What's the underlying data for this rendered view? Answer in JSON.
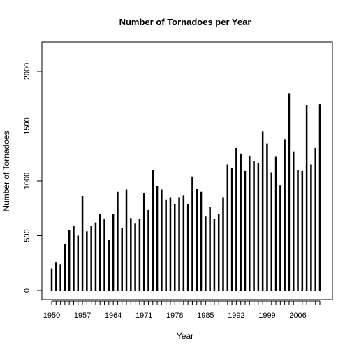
{
  "chart_data": {
    "type": "bar",
    "title": "Number of Tornadoes per Year",
    "xlabel": "Year",
    "ylabel": "Number of Tornadoes",
    "ylim": [
      0,
      2200
    ],
    "xlim": [
      1950,
      2011
    ],
    "x_tick_labels": [
      "1950",
      "1957",
      "1964",
      "1971",
      "1978",
      "1985",
      "1992",
      "1999",
      "2006"
    ],
    "y_tick_labels": [
      "0",
      "500",
      "1000",
      "1500",
      "2000"
    ],
    "grid": false,
    "legend": "none",
    "x": [
      1950,
      1951,
      1952,
      1953,
      1954,
      1955,
      1956,
      1957,
      1958,
      1959,
      1960,
      1961,
      1962,
      1963,
      1964,
      1965,
      1966,
      1967,
      1968,
      1969,
      1970,
      1971,
      1972,
      1973,
      1974,
      1975,
      1976,
      1977,
      1978,
      1979,
      1980,
      1981,
      1982,
      1983,
      1984,
      1985,
      1986,
      1987,
      1988,
      1989,
      1990,
      1991,
      1992,
      1993,
      1994,
      1995,
      1996,
      1997,
      1998,
      1999,
      2000,
      2001,
      2002,
      2003,
      2004,
      2005,
      2006,
      2007,
      2008,
      2009,
      2010,
      2011
    ],
    "values": [
      200,
      260,
      240,
      420,
      550,
      590,
      500,
      860,
      540,
      590,
      620,
      700,
      650,
      460,
      700,
      900,
      570,
      920,
      660,
      610,
      650,
      890,
      740,
      1100,
      950,
      920,
      830,
      850,
      790,
      850,
      870,
      790,
      1040,
      930,
      900,
      680,
      760,
      650,
      700,
      850,
      1150,
      1120,
      1300,
      1250,
      1090,
      1230,
      1180,
      1160,
      1450,
      1340,
      1080,
      1220,
      960,
      1380,
      1800,
      1270,
      1100,
      1090,
      1690,
      1150,
      1300,
      1700
    ]
  }
}
